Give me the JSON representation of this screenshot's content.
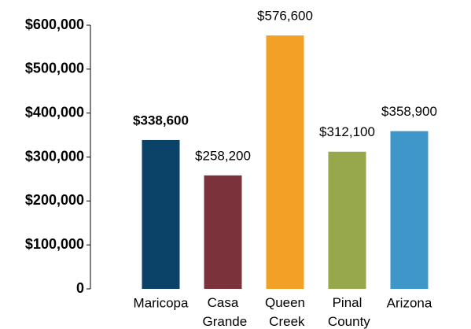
{
  "chart_data": {
    "type": "bar",
    "categories": [
      "Maricopa",
      "Casa Grande",
      "Queen Creek",
      "Pinal County",
      "Arizona"
    ],
    "values": [
      338600,
      258200,
      576600,
      312100,
      358900
    ],
    "value_labels": [
      "$338,600",
      "$258,200",
      "$576,600",
      "$312,100",
      "$358,900"
    ],
    "value_label_bold": [
      true,
      false,
      false,
      false,
      false
    ],
    "colors": [
      "#0b4268",
      "#7b323a",
      "#f2a026",
      "#97a74c",
      "#3f97c9"
    ],
    "ylim": [
      0,
      600000
    ],
    "yticks": [
      0,
      {
        "value": 100000,
        "label": "$100,000"
      },
      {
        "value": 200000,
        "label": "$200,000"
      },
      {
        "value": 300000,
        "label": "$300,000"
      },
      {
        "value": 400000,
        "label": "$400,000"
      },
      {
        "value": 500000,
        "label": "$500,000"
      },
      {
        "value": 600000,
        "label": "$600,000"
      }
    ],
    "grid": false
  }
}
